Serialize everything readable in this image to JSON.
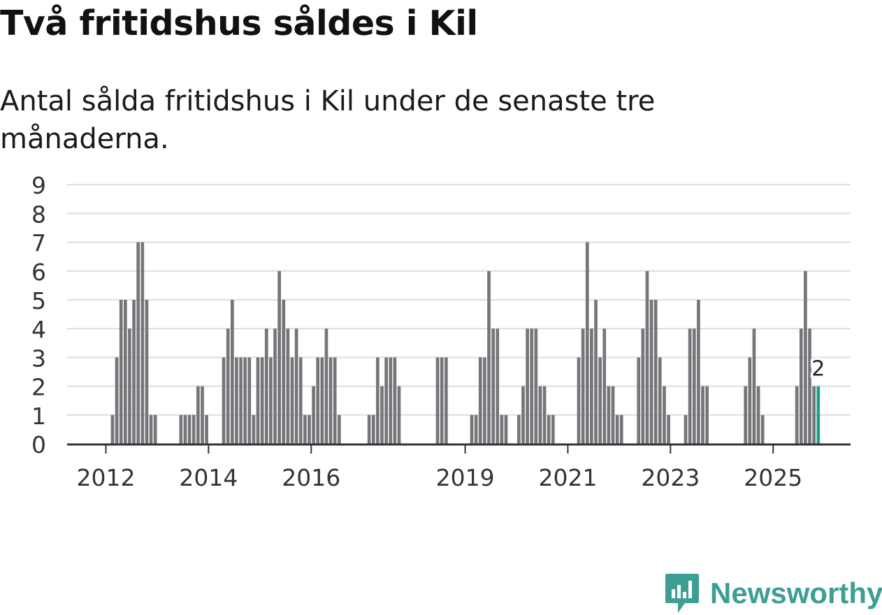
{
  "title": "Två fritidshus såldes i Kil",
  "subtitle": "Antal sålda fritidshus i Kil under de senaste tre månaderna.",
  "brand": {
    "name": "Newsworthy"
  },
  "colors": {
    "bar": "#76767a",
    "highlight": "#1a9f8e",
    "grid": "#dddddd",
    "axis": "#333333",
    "brand": "#3d9f93"
  },
  "chart_data": {
    "type": "bar",
    "title": "Två fritidshus såldes i Kil",
    "subtitle": "Antal sålda fritidshus i Kil under de senaste tre månaderna.",
    "xlabel": "",
    "ylabel": "",
    "ylim": [
      0,
      9
    ],
    "yticks": [
      0,
      1,
      2,
      3,
      4,
      5,
      6,
      7,
      8,
      9
    ],
    "x_ticks": [
      {
        "label": "2012",
        "month_index": 0
      },
      {
        "label": "2014",
        "month_index": 24
      },
      {
        "label": "2016",
        "month_index": 48
      },
      {
        "label": "2019",
        "month_index": 84
      },
      {
        "label": "2021",
        "month_index": 108
      },
      {
        "label": "2023",
        "month_index": 132
      },
      {
        "label": "2025",
        "month_index": 156
      }
    ],
    "start": "2012-01",
    "series": [
      {
        "name": "Antal sålda fritidshus",
        "values": [
          0,
          1,
          3,
          5,
          5,
          4,
          5,
          7,
          7,
          5,
          1,
          1,
          0,
          0,
          0,
          0,
          0,
          1,
          1,
          1,
          1,
          2,
          2,
          1,
          0,
          0,
          0,
          3,
          4,
          5,
          3,
          3,
          3,
          3,
          1,
          3,
          3,
          4,
          3,
          4,
          6,
          5,
          4,
          3,
          4,
          3,
          1,
          1,
          2,
          3,
          3,
          4,
          3,
          3,
          1,
          0,
          0,
          0,
          0,
          0,
          0,
          1,
          1,
          3,
          2,
          3,
          3,
          3,
          2,
          0,
          0,
          0,
          0,
          0,
          0,
          0,
          0,
          3,
          3,
          3,
          0,
          0,
          0,
          0,
          0,
          1,
          1,
          3,
          3,
          6,
          4,
          4,
          1,
          1,
          0,
          0,
          1,
          2,
          4,
          4,
          4,
          2,
          2,
          1,
          1,
          0,
          0,
          0,
          0,
          0,
          3,
          4,
          7,
          4,
          5,
          3,
          4,
          2,
          2,
          1,
          1,
          0,
          0,
          0,
          3,
          4,
          6,
          5,
          5,
          3,
          2,
          1,
          0,
          0,
          0,
          1,
          4,
          4,
          5,
          2,
          2,
          0,
          0,
          0,
          0,
          0,
          0,
          0,
          0,
          2,
          3,
          4,
          2,
          1,
          0,
          0,
          0,
          0,
          0,
          0,
          0,
          2,
          4,
          6,
          4,
          2,
          2
        ]
      }
    ],
    "highlight_index": 166,
    "annotation": "2",
    "legend": "none",
    "grid": true
  }
}
